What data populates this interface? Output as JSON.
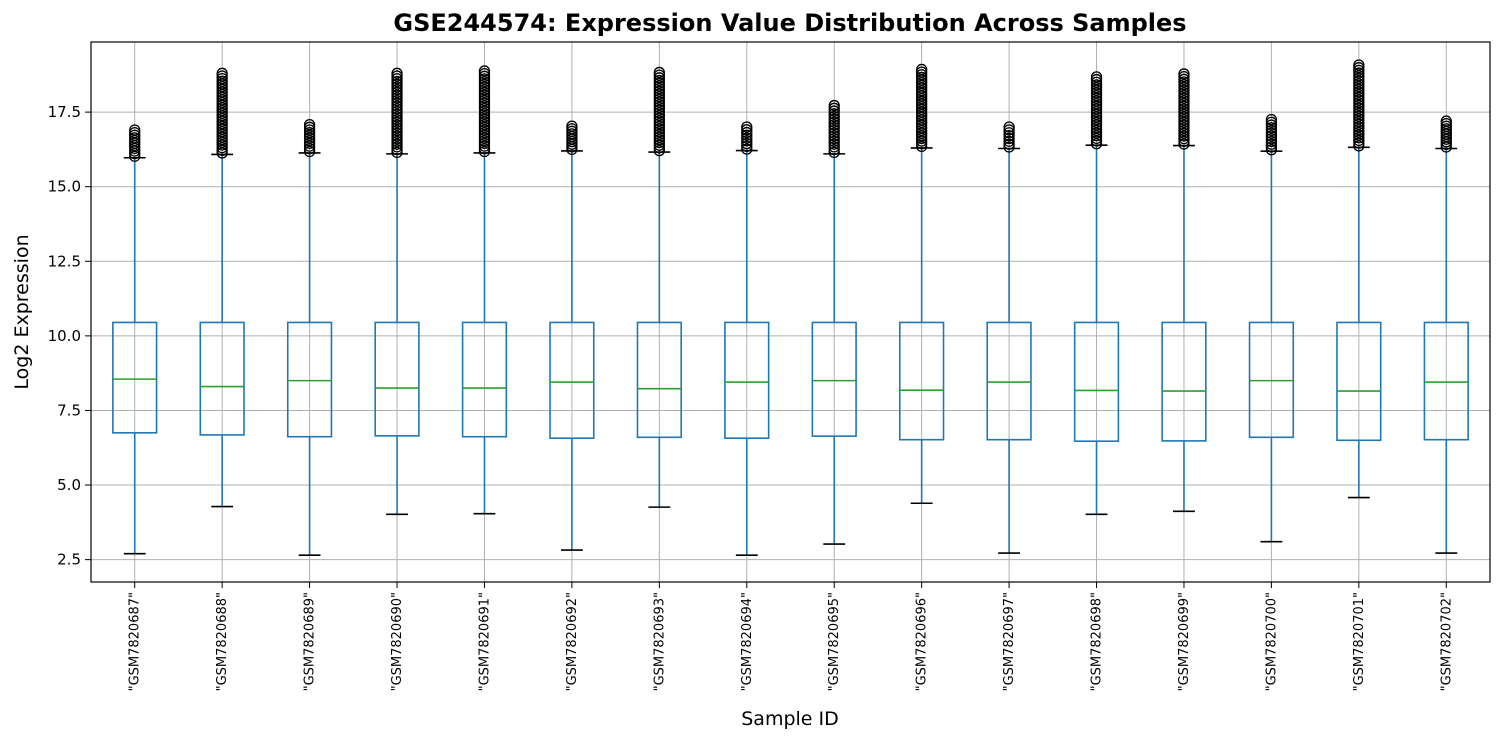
{
  "chart_data": {
    "type": "box",
    "title": "GSE244574: Expression Value Distribution Across Samples",
    "xlabel": "Sample ID",
    "ylabel": "Log2 Expression",
    "ylim": [
      1.75,
      19.85
    ],
    "yticks": [
      2.5,
      5.0,
      7.5,
      10.0,
      12.5,
      15.0,
      17.5
    ],
    "ytick_labels": [
      "2.5",
      "5.0",
      "7.5",
      "10.0",
      "12.5",
      "15.0",
      "17.5"
    ],
    "grid": true,
    "colors": {
      "box": "#1f77b4",
      "median": "#2ca02c",
      "cap": "#000000",
      "grid": "#b0b0b0",
      "flier": "#000000"
    },
    "categories": [
      "\"GSM7820687\"",
      "\"GSM7820688\"",
      "\"GSM7820689\"",
      "\"GSM7820690\"",
      "\"GSM7820691\"",
      "\"GSM7820692\"",
      "\"GSM7820693\"",
      "\"GSM7820694\"",
      "\"GSM7820695\"",
      "\"GSM7820696\"",
      "\"GSM7820697\"",
      "\"GSM7820698\"",
      "\"GSM7820699\"",
      "\"GSM7820700\"",
      "\"GSM7820701\"",
      "\"GSM7820702\""
    ],
    "boxes": [
      {
        "whisker_low": 2.7,
        "q1": 6.75,
        "median": 8.55,
        "q3": 10.45,
        "whisker_high": 15.97,
        "flier_max": 16.9
      },
      {
        "whisker_low": 4.28,
        "q1": 6.68,
        "median": 8.3,
        "q3": 10.45,
        "whisker_high": 16.08,
        "flier_max": 18.8
      },
      {
        "whisker_low": 2.65,
        "q1": 6.62,
        "median": 8.5,
        "q3": 10.45,
        "whisker_high": 16.13,
        "flier_max": 17.08
      },
      {
        "whisker_low": 4.02,
        "q1": 6.65,
        "median": 8.25,
        "q3": 10.45,
        "whisker_high": 16.1,
        "flier_max": 18.8
      },
      {
        "whisker_low": 4.04,
        "q1": 6.62,
        "median": 8.25,
        "q3": 10.45,
        "whisker_high": 16.13,
        "flier_max": 18.88
      },
      {
        "whisker_low": 2.82,
        "q1": 6.57,
        "median": 8.45,
        "q3": 10.45,
        "whisker_high": 16.2,
        "flier_max": 17.03
      },
      {
        "whisker_low": 4.26,
        "q1": 6.6,
        "median": 8.23,
        "q3": 10.45,
        "whisker_high": 16.16,
        "flier_max": 18.83
      },
      {
        "whisker_low": 2.65,
        "q1": 6.57,
        "median": 8.45,
        "q3": 10.45,
        "whisker_high": 16.21,
        "flier_max": 17.0
      },
      {
        "whisker_low": 3.02,
        "q1": 6.64,
        "median": 8.5,
        "q3": 10.45,
        "whisker_high": 16.1,
        "flier_max": 17.72
      },
      {
        "whisker_low": 4.39,
        "q1": 6.52,
        "median": 8.18,
        "q3": 10.45,
        "whisker_high": 16.3,
        "flier_max": 18.93
      },
      {
        "whisker_low": 2.72,
        "q1": 6.52,
        "median": 8.45,
        "q3": 10.45,
        "whisker_high": 16.28,
        "flier_max": 17.0
      },
      {
        "whisker_low": 4.02,
        "q1": 6.47,
        "median": 8.17,
        "q3": 10.45,
        "whisker_high": 16.39,
        "flier_max": 18.68
      },
      {
        "whisker_low": 4.12,
        "q1": 6.48,
        "median": 8.15,
        "q3": 10.45,
        "whisker_high": 16.38,
        "flier_max": 18.78
      },
      {
        "whisker_low": 3.1,
        "q1": 6.6,
        "median": 8.5,
        "q3": 10.45,
        "whisker_high": 16.19,
        "flier_max": 17.25
      },
      {
        "whisker_low": 4.58,
        "q1": 6.5,
        "median": 8.15,
        "q3": 10.45,
        "whisker_high": 16.32,
        "flier_max": 19.08
      },
      {
        "whisker_low": 2.72,
        "q1": 6.52,
        "median": 8.45,
        "q3": 10.45,
        "whisker_high": 16.28,
        "flier_max": 17.2
      }
    ]
  }
}
